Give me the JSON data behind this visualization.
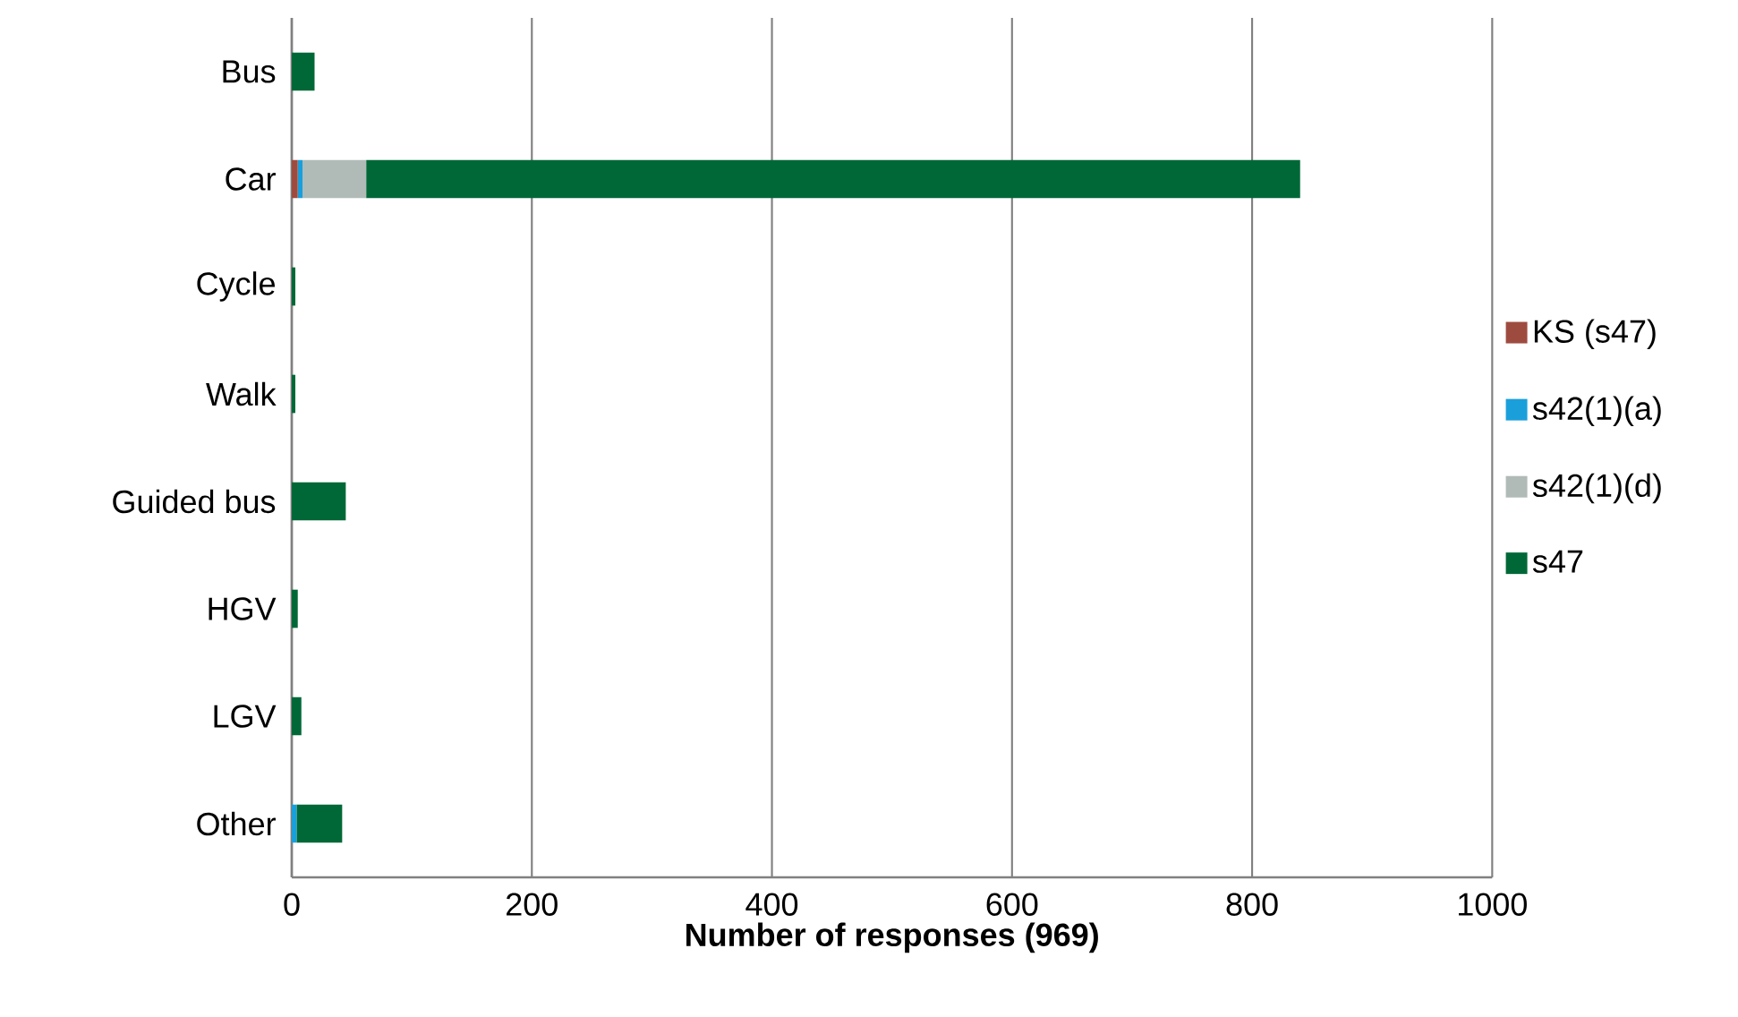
{
  "chart_data": {
    "type": "bar",
    "orientation": "horizontal",
    "stacked": true,
    "xlabel": "Number of responses (969)",
    "categories": [
      "Bus",
      "Car",
      "Cycle",
      "Walk",
      "Guided bus",
      "HGV",
      "LGV",
      "Other"
    ],
    "series": [
      {
        "name": "KS (s47)",
        "color": "#9e4b3f",
        "values": [
          0,
          5,
          0,
          0,
          0,
          0,
          0,
          0
        ]
      },
      {
        "name": "s42(1)(a)",
        "color": "#1a9fdb",
        "values": [
          0,
          4,
          0,
          0,
          0,
          0,
          0,
          4
        ]
      },
      {
        "name": "s42(1)(d)",
        "color": "#b0bbb8",
        "values": [
          0,
          53,
          0,
          0,
          0,
          0,
          0,
          0
        ]
      },
      {
        "name": "s47",
        "color": "#006837",
        "values": [
          19,
          778,
          3,
          3,
          45,
          5,
          8,
          38
        ]
      }
    ],
    "xlim": [
      0,
      1000
    ],
    "xticks": [
      0,
      200,
      400,
      600,
      800,
      1000
    ],
    "grid": "x",
    "legend": "right"
  }
}
